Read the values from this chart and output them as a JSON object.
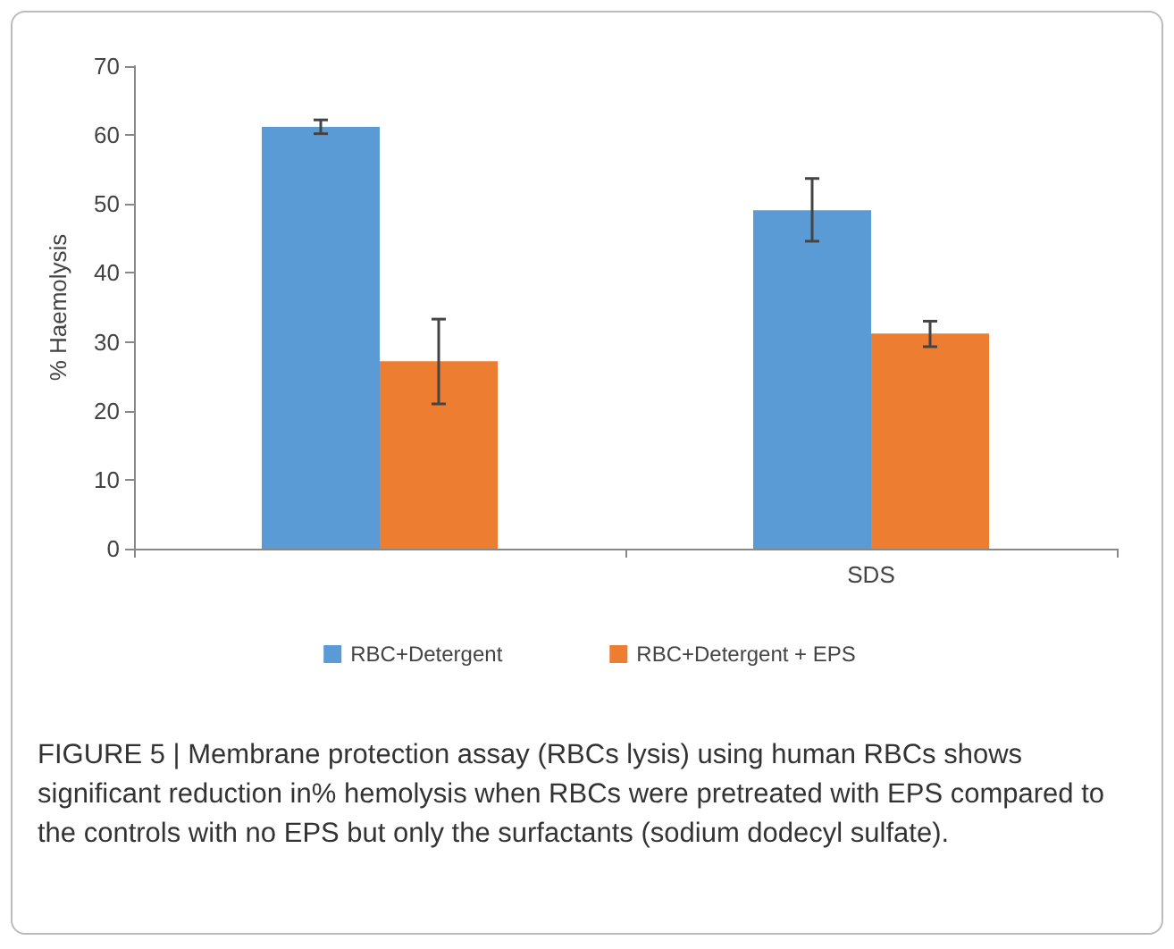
{
  "chart_data": {
    "type": "bar",
    "ylabel": "% Haemolysis",
    "categories": [
      null,
      "SDS"
    ],
    "series": [
      {
        "name": "RBC+Detergent",
        "color": "#5b9bd5",
        "values": [
          61.2,
          49.1
        ],
        "errors": [
          [
            60.2,
            62.2
          ],
          [
            44.6,
            53.7
          ]
        ]
      },
      {
        "name": "RBC+Detergent + EPS",
        "color": "#ed7d31",
        "values": [
          27.2,
          31.2
        ],
        "errors": [
          [
            21.0,
            33.3
          ],
          [
            29.3,
            33.0
          ]
        ]
      }
    ],
    "ylim": [
      0,
      70
    ],
    "yticks": [
      0,
      10,
      20,
      30,
      40,
      50,
      60,
      70
    ],
    "grid": false,
    "legend": "bottom",
    "annotations": [
      "FIGURE 5 | Membrane protection assay (RBCs lysis) using human RBCs shows significant reduction in% hemolysis when RBCs were pretreated with EPS compared to the controls with no EPS but only the surfactants (sodium dodecyl sulfate)."
    ]
  }
}
